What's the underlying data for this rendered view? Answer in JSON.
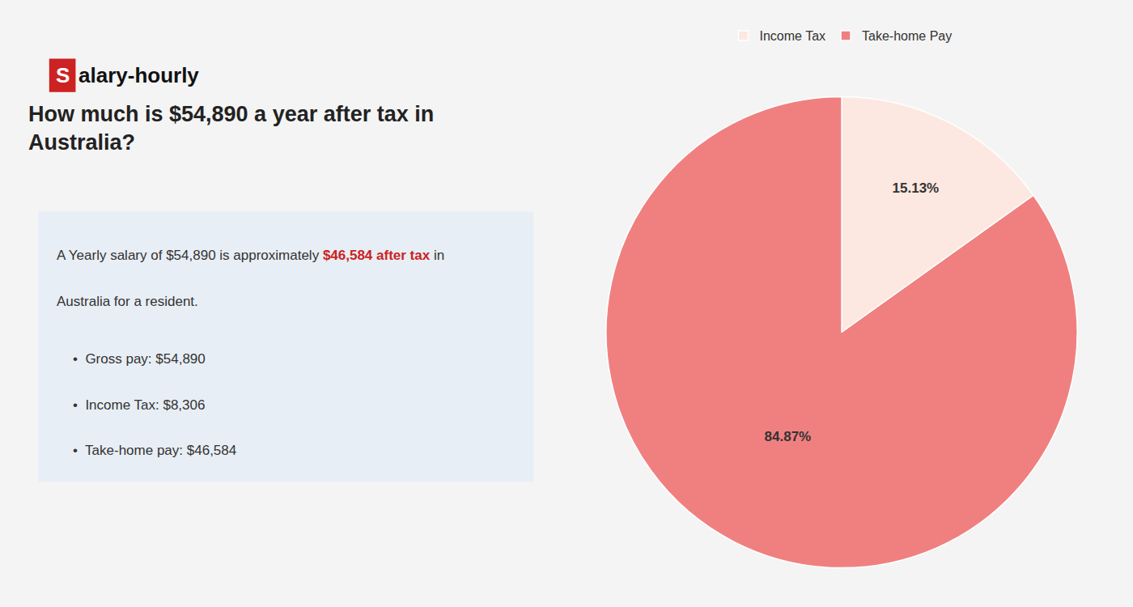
{
  "chart_data": {
    "type": "pie",
    "title": "How much is $54,890 a year after tax in\nAustralia?",
    "categories": [
      "Income Tax",
      "Take-home Pay"
    ],
    "values": [
      15.13,
      84.87
    ],
    "value_labels": [
      "15.13%",
      "84.87%"
    ],
    "data_labels": true,
    "colors": [
      "#fce8e0",
      "#f08080"
    ],
    "legend": "top",
    "annotations": [
      [
        {
          "text": "S"
        },
        {
          "text": "alary-hourly"
        }
      ],
      [
        {
          "text": "A Yearly salary of $54,890 is approximately "
        },
        {
          "text": "$46,584 after tax",
          "color": "#cc2222"
        },
        {
          "text": " in"
        }
      ],
      [
        {
          "text": "Australia for a resident."
        }
      ],
      [
        {
          "text": "•  Gross pay: $54,890"
        }
      ],
      [
        {
          "text": "•  Income Tax: $8,306"
        }
      ],
      [
        {
          "text": "•  Take-home pay: $46,584"
        }
      ]
    ]
  }
}
